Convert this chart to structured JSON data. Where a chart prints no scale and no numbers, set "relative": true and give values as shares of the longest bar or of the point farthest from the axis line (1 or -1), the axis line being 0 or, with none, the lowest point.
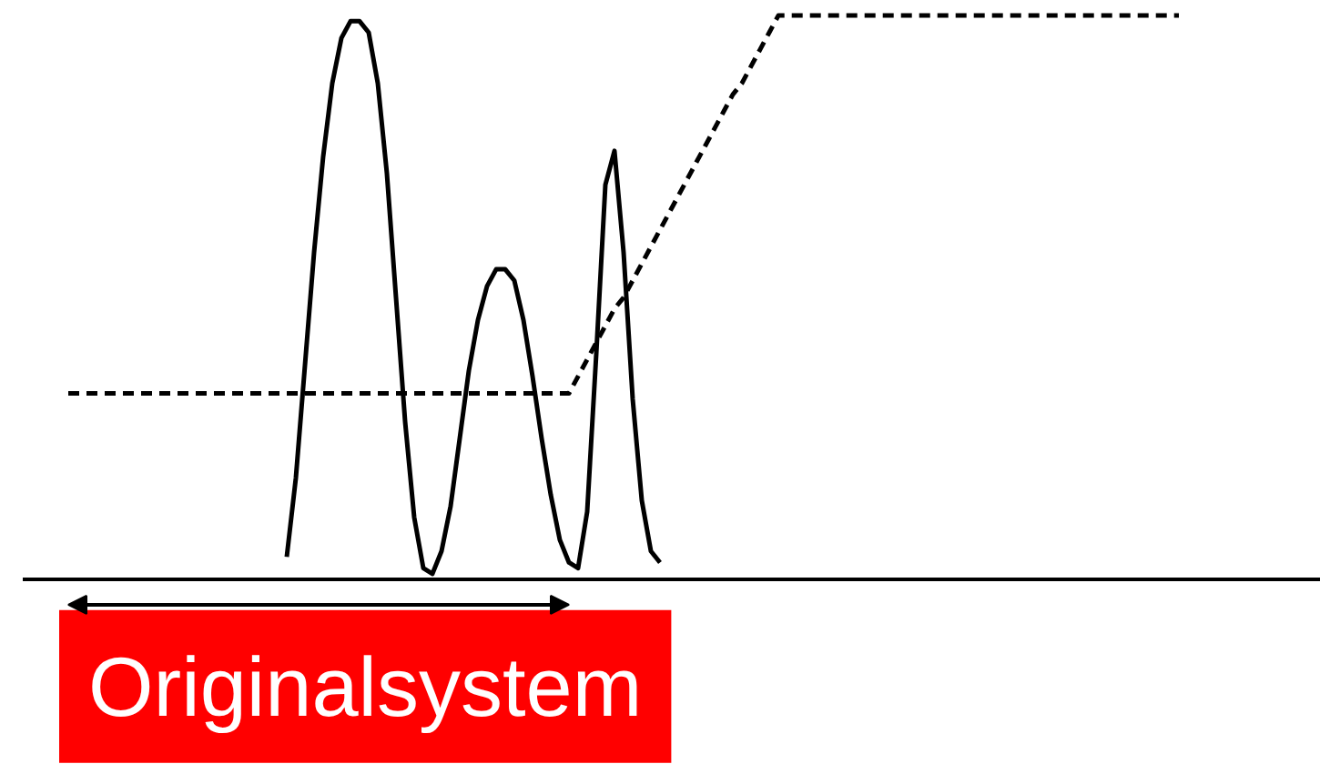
{
  "chart_data": {
    "type": "line",
    "relative": true,
    "grid": false,
    "categories": [
      null,
      null,
      null,
      null,
      null,
      null,
      null,
      null,
      null,
      null,
      null,
      null,
      null,
      null,
      null,
      null,
      null,
      null,
      null,
      null,
      null,
      null,
      null,
      null,
      null,
      null,
      null,
      null,
      null,
      null,
      null,
      null,
      null,
      null,
      null,
      null,
      null,
      null,
      null,
      null,
      null,
      null,
      null,
      null,
      null,
      null,
      null,
      null,
      null,
      null,
      null,
      null,
      null,
      null,
      null,
      null,
      null,
      null,
      null,
      null,
      null,
      null,
      null,
      null,
      null,
      null,
      null,
      null,
      null,
      null,
      null,
      null,
      null,
      null,
      null,
      null,
      null,
      null,
      null,
      null,
      null,
      null,
      null,
      null,
      null,
      null,
      null,
      null,
      null,
      null,
      null,
      null,
      null,
      null,
      null,
      null,
      null,
      null,
      null,
      null,
      null,
      null,
      null,
      null,
      null,
      null,
      null,
      null,
      null,
      null,
      null,
      null,
      null,
      null,
      null,
      null,
      null,
      null,
      null,
      null,
      null,
      null,
      null,
      null,
      null,
      null,
      null,
      null,
      null,
      null,
      null,
      null,
      null,
      null,
      null,
      null,
      null,
      null,
      null,
      null,
      null,
      null,
      null
    ],
    "series": [
      {
        "color": "#000000",
        "line_style": "solid",
        "values": [
          null,
          null,
          null,
          null,
          null,
          null,
          null,
          null,
          null,
          null,
          null,
          null,
          null,
          null,
          null,
          null,
          null,
          null,
          null,
          null,
          null,
          null,
          null,
          null,
          null,
          null,
          null,
          null,
          null,
          0.04,
          0.18,
          0.38,
          0.58,
          0.75,
          0.88,
          0.96,
          0.99,
          0.99,
          0.97,
          0.88,
          0.72,
          0.5,
          0.28,
          0.11,
          0.02,
          0.01,
          0.05,
          0.13,
          0.25,
          0.37,
          0.46,
          0.52,
          0.55,
          0.55,
          0.53,
          0.46,
          0.36,
          0.25,
          0.15,
          0.07,
          0.03,
          0.02,
          0.12,
          0.4,
          0.7,
          0.76,
          0.58,
          0.32,
          0.14,
          0.05,
          0.03,
          null,
          null,
          null,
          null,
          null,
          null,
          null,
          null,
          null,
          null,
          null,
          null,
          null,
          null,
          null,
          null,
          null,
          null,
          null,
          null,
          null,
          null,
          null,
          null,
          null,
          null,
          null,
          null,
          null,
          null,
          null,
          null,
          null,
          null,
          null,
          null,
          null,
          null,
          null,
          null,
          null,
          null,
          null,
          null,
          null,
          null,
          null,
          null,
          null,
          null,
          null,
          null,
          null,
          null,
          null,
          null,
          null,
          null,
          null,
          null,
          null,
          null,
          null,
          null,
          null,
          null,
          null,
          null,
          null,
          null,
          null,
          null
        ]
      },
      {
        "color": "#000000",
        "line_style": "dashed",
        "values": [
          null,
          null,
          null,
          null,
          null,
          0.33,
          0.33,
          0.33,
          0.33,
          0.33,
          0.33,
          0.33,
          0.33,
          0.33,
          0.33,
          0.33,
          0.33,
          0.33,
          0.33,
          0.33,
          0.33,
          0.33,
          0.33,
          0.33,
          0.33,
          0.33,
          0.33,
          0.33,
          0.33,
          0.33,
          0.33,
          0.33,
          0.33,
          0.33,
          0.33,
          0.33,
          0.33,
          0.33,
          0.33,
          0.33,
          0.33,
          0.33,
          0.33,
          0.33,
          0.33,
          0.33,
          0.33,
          0.33,
          0.33,
          0.33,
          0.33,
          0.33,
          0.33,
          0.33,
          0.33,
          0.33,
          0.33,
          0.33,
          0.33,
          0.33,
          0.33,
          0.36,
          0.39,
          0.42,
          0.45,
          0.48,
          0.5,
          0.53,
          0.56,
          0.59,
          0.62,
          0.65,
          0.68,
          0.71,
          0.74,
          0.77,
          0.8,
          0.83,
          0.86,
          0.88,
          0.91,
          0.94,
          0.97,
          1.0,
          1.0,
          1.0,
          1.0,
          1.0,
          1.0,
          1.0,
          1.0,
          1.0,
          1.0,
          1.0,
          1.0,
          1.0,
          1.0,
          1.0,
          1.0,
          1.0,
          1.0,
          1.0,
          1.0,
          1.0,
          1.0,
          1.0,
          1.0,
          1.0,
          1.0,
          1.0,
          1.0,
          1.0,
          1.0,
          1.0,
          1.0,
          1.0,
          1.0,
          1.0,
          1.0,
          1.0,
          1.0,
          1.0,
          1.0,
          1.0,
          1.0,
          1.0,
          1.0,
          1.0,
          null,
          null,
          null,
          null,
          null,
          null,
          null,
          null,
          null,
          null,
          null,
          null,
          null,
          null,
          null
        ]
      }
    ],
    "annotations": [
      "Originalsystem"
    ]
  }
}
